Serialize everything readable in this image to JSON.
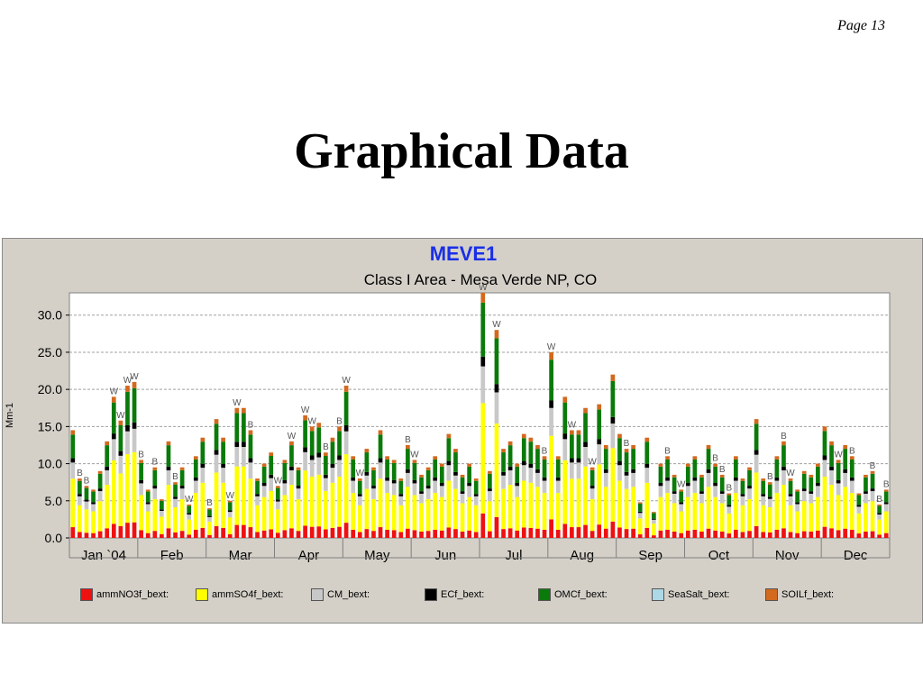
{
  "page": {
    "number_label": "Page 13"
  },
  "slide": {
    "title": "Graphical Data"
  },
  "chart_data": {
    "type": "bar",
    "stacked": true,
    "title": "MEVE1",
    "subtitle": "Class I Area - Mesa Verde NP, CO",
    "ylabel": "Mm-1",
    "xlabel": "",
    "ylim": [
      0,
      33
    ],
    "yticks": [
      "0.0",
      "5.0",
      "10.0",
      "15.0",
      "20.0",
      "25.0",
      "30.0"
    ],
    "grid": true,
    "legend_position": "bottom",
    "month_labels": [
      "Jan `04",
      "Feb",
      "Mar",
      "Apr",
      "May",
      "Jun",
      "Jul",
      "Aug",
      "Sep",
      "Oct",
      "Nov",
      "Dec"
    ],
    "series": [
      {
        "name": "ammNO3f_bext:",
        "color": "#ee1111"
      },
      {
        "name": "ammSO4f_bext:",
        "color": "#ffff00"
      },
      {
        "name": "CM_bext:",
        "color": "#c8c8c8"
      },
      {
        "name": "ECf_bext:",
        "color": "#000000"
      },
      {
        "name": "OMCf_bext:",
        "color": "#0a7a0a"
      },
      {
        "name": "SeaSalt_bext:",
        "color": "#add8e6"
      },
      {
        "name": "SOILf_bext:",
        "color": "#d2691e"
      }
    ],
    "samples_per_month": 10,
    "totals": [
      [
        14.5,
        8.0,
        7.0,
        6.5,
        9.0,
        13.0,
        19.0,
        15.8,
        20.5,
        21.0
      ],
      [
        10.5,
        6.5,
        9.5,
        5.2,
        13.0,
        7.5,
        9.5,
        4.5,
        11.0,
        13.5
      ],
      [
        4.0,
        16.0,
        13.5,
        5.0,
        17.5,
        17.5,
        14.5,
        8.0,
        10.0,
        11.5
      ],
      [
        7.0,
        10.5,
        13.0,
        9.5,
        16.5,
        15.0,
        15.5,
        11.5,
        13.5,
        15.0
      ],
      [
        20.5,
        11.0,
        8.0,
        12.0,
        9.5,
        14.5,
        11.0,
        10.5,
        8.0,
        12.5
      ],
      [
        10.5,
        8.5,
        9.5,
        11.0,
        10.0,
        14.0,
        12.0,
        8.5,
        10.0,
        8.0
      ],
      [
        33.0,
        9.0,
        28.0,
        12.0,
        13.0,
        10.0,
        14.0,
        13.5,
        12.5,
        11.0
      ],
      [
        25.0,
        11.0,
        19.0,
        14.5,
        14.5,
        17.5,
        9.5,
        18.0,
        12.5,
        22.0
      ],
      [
        14.0,
        12.0,
        12.5,
        4.8,
        13.5,
        3.5,
        10.0,
        11.0,
        8.5,
        6.5
      ],
      [
        10.0,
        11.0,
        8.5,
        12.5,
        10.0,
        8.5,
        6.0,
        11.0,
        8.0,
        9.5
      ],
      [
        16.0,
        8.0,
        7.5,
        11.0,
        13.0,
        8.0,
        6.5,
        9.0,
        8.5,
        10.0
      ],
      [
        15.0,
        13.0,
        10.5,
        12.5,
        11.0,
        6.0,
        8.5,
        9.0,
        4.5,
        6.5
      ]
    ],
    "annotations": {
      "W": [
        [
          0,
          6
        ],
        [
          0,
          7
        ],
        [
          0,
          8
        ],
        [
          0,
          9
        ],
        [
          1,
          7
        ],
        [
          2,
          3
        ],
        [
          2,
          4
        ],
        [
          3,
          0
        ],
        [
          3,
          2
        ],
        [
          3,
          4
        ],
        [
          3,
          5
        ],
        [
          4,
          0
        ],
        [
          4,
          2
        ],
        [
          5,
          0
        ],
        [
          6,
          0
        ],
        [
          6,
          2
        ],
        [
          7,
          0
        ],
        [
          7,
          3
        ],
        [
          7,
          6
        ],
        [
          8,
          9
        ],
        [
          10,
          5
        ],
        [
          11,
          2
        ]
      ],
      "B": [
        [
          0,
          1
        ],
        [
          0,
          2
        ],
        [
          1,
          0
        ],
        [
          1,
          2
        ],
        [
          1,
          5
        ],
        [
          2,
          0
        ],
        [
          2,
          6
        ],
        [
          3,
          7
        ],
        [
          3,
          9
        ],
        [
          4,
          9
        ],
        [
          6,
          9
        ],
        [
          8,
          1
        ],
        [
          8,
          7
        ],
        [
          9,
          4
        ],
        [
          9,
          5
        ],
        [
          9,
          6
        ],
        [
          10,
          2
        ],
        [
          10,
          4
        ],
        [
          11,
          4
        ],
        [
          11,
          7
        ],
        [
          11,
          8
        ],
        [
          11,
          9
        ]
      ]
    }
  },
  "legend_labels": [
    "ammNO3f_bext:",
    "ammSO4f_bext:",
    "CM_bext:",
    "ECf_bext:",
    "OMCf_bext:",
    "SeaSalt_bext:",
    "SOILf_bext:"
  ]
}
